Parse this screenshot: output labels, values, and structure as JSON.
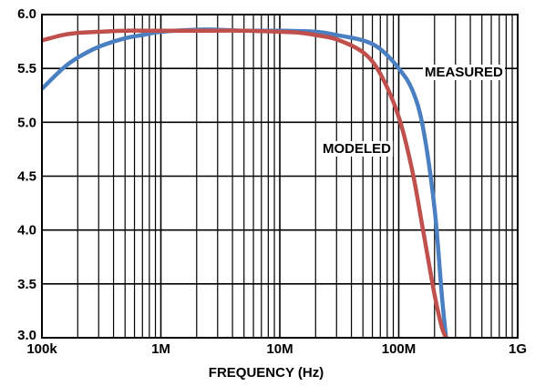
{
  "chart_data": {
    "type": "line",
    "xlabel": "FREQUENCY (Hz)",
    "ylabel": "",
    "x_scale": "log",
    "xlim": [
      100000,
      1000000000
    ],
    "ylim": [
      3.0,
      6.0
    ],
    "grid": true,
    "x_ticks": [
      {
        "value": 100000,
        "label": "100k"
      },
      {
        "value": 1000000,
        "label": "1M"
      },
      {
        "value": 10000000,
        "label": "10M"
      },
      {
        "value": 100000000,
        "label": "100M"
      },
      {
        "value": 1000000000,
        "label": "1G"
      }
    ],
    "y_ticks": [
      {
        "value": 3.0,
        "label": "3.0"
      },
      {
        "value": 3.5,
        "label": "3.5"
      },
      {
        "value": 4.0,
        "label": "4.0"
      },
      {
        "value": 4.5,
        "label": "4.5"
      },
      {
        "value": 5.0,
        "label": "5.0"
      },
      {
        "value": 5.5,
        "label": "5.5"
      },
      {
        "value": 6.0,
        "label": "6.0"
      }
    ],
    "series": [
      {
        "name": "MEASURED",
        "color": "#4a7fc1",
        "x": [
          100000,
          150000,
          200000,
          300000,
          500000,
          700000,
          1000000,
          2000000,
          3000000,
          5000000,
          10000000,
          20000000,
          30000000,
          50000000,
          70000000,
          100000000,
          130000000,
          160000000,
          200000000,
          230000000,
          250000000
        ],
        "y": [
          5.31,
          5.5,
          5.6,
          5.7,
          5.78,
          5.81,
          5.84,
          5.86,
          5.86,
          5.85,
          5.85,
          5.84,
          5.81,
          5.76,
          5.68,
          5.5,
          5.3,
          4.95,
          4.2,
          3.4,
          3.0
        ]
      },
      {
        "name": "MODELED",
        "color": "#c0504d",
        "x": [
          100000,
          150000,
          200000,
          300000,
          500000,
          1000000,
          2000000,
          5000000,
          10000000,
          15000000,
          20000000,
          30000000,
          50000000,
          70000000,
          100000000,
          130000000,
          160000000,
          200000000,
          230000000,
          250000000
        ],
        "y": [
          5.76,
          5.81,
          5.83,
          5.84,
          5.85,
          5.85,
          5.85,
          5.85,
          5.84,
          5.83,
          5.81,
          5.77,
          5.65,
          5.45,
          5.05,
          4.55,
          4.0,
          3.4,
          3.1,
          3.0
        ]
      }
    ],
    "annotations": [
      {
        "text": "MEASURED",
        "series": "MEASURED"
      },
      {
        "text": "MODELED",
        "series": "MODELED"
      }
    ]
  }
}
